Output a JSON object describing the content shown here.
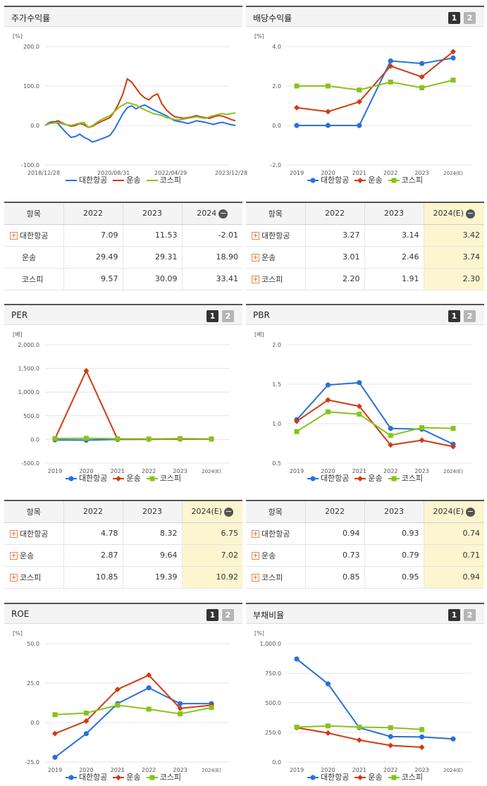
{
  "legend_names": [
    "대한항공",
    "운송",
    "코스피"
  ],
  "colors": {
    "a": "#2a6fdb",
    "b": "#d23a0f",
    "c": "#86c31c"
  },
  "panels": {
    "stock": {
      "title": "주가수익률"
    },
    "dividend": {
      "title": "배당수익률",
      "btn1": "1",
      "btn2": "2"
    },
    "per": {
      "title": "PER",
      "btn1": "1",
      "btn2": "2"
    },
    "pbr": {
      "title": "PBR",
      "btn1": "1",
      "btn2": "2"
    },
    "roe": {
      "title": "ROE",
      "btn1": "1",
      "btn2": "2"
    },
    "debt": {
      "title": "부채비율",
      "btn1": "1",
      "btn2": "2"
    }
  },
  "tables": {
    "stock": {
      "headers": [
        "항목",
        "2022",
        "2023",
        "2024"
      ],
      "rows": [
        {
          "name": "대한항공",
          "v": [
            "7.09",
            "11.53",
            "-2.01"
          ]
        },
        {
          "name": "운송",
          "v": [
            "29.49",
            "29.31",
            "18.90"
          ]
        },
        {
          "name": "코스피",
          "v": [
            "9.57",
            "30.09",
            "33.41"
          ]
        }
      ]
    },
    "dividend": {
      "headers": [
        "항목",
        "2022",
        "2023",
        "2024(E)"
      ],
      "rows": [
        {
          "name": "대한항공",
          "v": [
            "3.27",
            "3.14",
            "3.42"
          ]
        },
        {
          "name": "운송",
          "v": [
            "3.01",
            "2.46",
            "3.74"
          ]
        },
        {
          "name": "코스피",
          "v": [
            "2.20",
            "1.91",
            "2.30"
          ]
        }
      ]
    },
    "per": {
      "headers": [
        "항목",
        "2022",
        "2023",
        "2024(E)"
      ],
      "rows": [
        {
          "name": "대한항공",
          "v": [
            "4.78",
            "8.32",
            "6.75"
          ]
        },
        {
          "name": "운송",
          "v": [
            "2.87",
            "9.64",
            "7.02"
          ]
        },
        {
          "name": "코스피",
          "v": [
            "10.85",
            "19.39",
            "10.92"
          ]
        }
      ]
    },
    "pbr": {
      "headers": [
        "항목",
        "2022",
        "2023",
        "2024(E)"
      ],
      "rows": [
        {
          "name": "대한항공",
          "v": [
            "0.94",
            "0.93",
            "0.74"
          ]
        },
        {
          "name": "운송",
          "v": [
            "0.73",
            "0.79",
            "0.71"
          ]
        },
        {
          "name": "코스피",
          "v": [
            "0.85",
            "0.95",
            "0.94"
          ]
        }
      ]
    }
  },
  "chart_data": [
    {
      "id": "stock",
      "type": "line",
      "ylabel": "[%]",
      "ylim": [
        -100,
        200
      ],
      "yticks": [
        "200.0",
        "100.0",
        "0.0",
        "-100.0"
      ],
      "ytick_values": [
        200,
        100,
        0,
        -100
      ],
      "xticks": [
        "2018/12/28",
        "2020/08/31",
        "2022/04/29",
        "2023/12/28"
      ],
      "series": [
        {
          "name": "대한항공",
          "values": [
            0,
            8,
            10,
            5,
            -8,
            -20,
            -30,
            -28,
            -22,
            -30,
            -35,
            -42,
            -38,
            -34,
            -30,
            -25,
            -10,
            10,
            30,
            45,
            50,
            42,
            48,
            52,
            46,
            40,
            35,
            30,
            25,
            18,
            12,
            10,
            8,
            5,
            8,
            12,
            10,
            8,
            5,
            3,
            6,
            8,
            5,
            2,
            0
          ]
        },
        {
          "name": "운송",
          "values": [
            0,
            5,
            8,
            12,
            6,
            2,
            -2,
            0,
            5,
            2,
            -5,
            -2,
            5,
            10,
            15,
            20,
            35,
            55,
            80,
            118,
            110,
            95,
            80,
            70,
            65,
            75,
            80,
            55,
            40,
            30,
            22,
            20,
            18,
            20,
            22,
            25,
            22,
            20,
            18,
            22,
            25,
            24,
            20,
            15,
            12
          ]
        },
        {
          "name": "코스피",
          "values": [
            0,
            5,
            6,
            8,
            4,
            2,
            0,
            3,
            6,
            8,
            -5,
            0,
            8,
            15,
            20,
            25,
            35,
            45,
            52,
            58,
            55,
            52,
            45,
            40,
            35,
            30,
            28,
            25,
            20,
            18,
            15,
            14,
            16,
            18,
            20,
            22,
            20,
            18,
            22,
            25,
            28,
            30,
            28,
            30,
            32
          ]
        }
      ]
    },
    {
      "id": "dividend",
      "type": "line",
      "ylabel": "[%]",
      "ylim": [
        -2,
        4
      ],
      "yticks": [
        "4.0",
        "2.0",
        "0.0",
        "-2.0"
      ],
      "ytick_values": [
        4,
        2,
        0,
        -2
      ],
      "categories": [
        "2019",
        "2020",
        "2021",
        "2022",
        "2023",
        "2024(E)"
      ],
      "series": [
        {
          "name": "대한항공",
          "values": [
            0,
            0,
            0,
            3.27,
            3.14,
            3.42
          ]
        },
        {
          "name": "운송",
          "values": [
            0.9,
            0.7,
            1.2,
            3.01,
            2.46,
            3.74
          ]
        },
        {
          "name": "코스피",
          "values": [
            2.0,
            2.0,
            1.8,
            2.2,
            1.91,
            2.3
          ]
        }
      ]
    },
    {
      "id": "per",
      "type": "line",
      "ylabel": "[배]",
      "ylim": [
        -500,
        2000
      ],
      "yticks": [
        "2,000.0",
        "1,500.0",
        "1,000.0",
        "500.0",
        "0.0",
        "-500.0"
      ],
      "ytick_values": [
        2000,
        1500,
        1000,
        500,
        0,
        -500
      ],
      "categories": [
        "2019",
        "2020",
        "2021",
        "2022",
        "2023",
        "2024(E)"
      ],
      "series": [
        {
          "name": "대한항공",
          "values": [
            -10,
            -15,
            0,
            4.78,
            8.32,
            6.75
          ]
        },
        {
          "name": "운송",
          "values": [
            15,
            1450,
            5,
            2.87,
            9.64,
            7.02
          ]
        },
        {
          "name": "코스피",
          "values": [
            20,
            25,
            15,
            10.85,
            19.39,
            10.92
          ]
        }
      ]
    },
    {
      "id": "pbr",
      "type": "line",
      "ylabel": "[배]",
      "ylim": [
        0.5,
        2.0
      ],
      "yticks": [
        "2.0",
        "1.5",
        "1.0",
        "0.5"
      ],
      "ytick_values": [
        2.0,
        1.5,
        1.0,
        0.5
      ],
      "categories": [
        "2019",
        "2020",
        "2021",
        "2022",
        "2023",
        "2024(E)"
      ],
      "series": [
        {
          "name": "대한항공",
          "values": [
            1.05,
            1.49,
            1.52,
            0.94,
            0.93,
            0.74
          ]
        },
        {
          "name": "운송",
          "values": [
            1.03,
            1.3,
            1.22,
            0.73,
            0.79,
            0.71
          ]
        },
        {
          "name": "코스피",
          "values": [
            0.9,
            1.15,
            1.12,
            0.85,
            0.95,
            0.94
          ]
        }
      ]
    },
    {
      "id": "roe",
      "type": "line",
      "ylabel": "[%]",
      "ylim": [
        -25,
        50
      ],
      "yticks": [
        "50.0",
        "25.0",
        "0.0",
        "-25.0"
      ],
      "ytick_values": [
        50,
        25,
        0,
        -25
      ],
      "categories": [
        "2019",
        "2020",
        "2021",
        "2022",
        "2023",
        "2024(E)"
      ],
      "series": [
        {
          "name": "대한항공",
          "values": [
            -22,
            -7,
            12,
            22,
            12,
            12
          ]
        },
        {
          "name": "운송",
          "values": [
            -7,
            1,
            21,
            30,
            9,
            11
          ]
        },
        {
          "name": "코스피",
          "values": [
            5,
            6,
            11,
            8.5,
            5.5,
            9.5
          ]
        }
      ]
    },
    {
      "id": "debt",
      "type": "line",
      "ylabel": "[%]",
      "ylim": [
        0,
        1000
      ],
      "yticks": [
        "1,000.0",
        "750.0",
        "500.0",
        "250.0",
        "0.0"
      ],
      "ytick_values": [
        1000,
        750,
        500,
        250,
        0
      ],
      "categories": [
        "2019",
        "2020",
        "2021",
        "2022",
        "2023",
        "2024(E)"
      ],
      "series": [
        {
          "name": "대한항공",
          "values": [
            870,
            660,
            290,
            215,
            212,
            195
          ]
        },
        {
          "name": "운송",
          "values": [
            290,
            245,
            185,
            140,
            125,
            null
          ]
        },
        {
          "name": "코스피",
          "values": [
            295,
            305,
            295,
            290,
            275,
            null
          ]
        }
      ]
    }
  ]
}
